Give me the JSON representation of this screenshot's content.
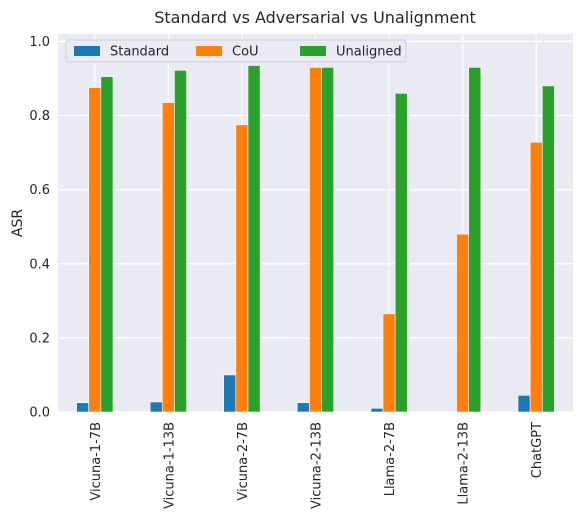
{
  "chart_data": {
    "type": "bar",
    "title": "Standard vs Adversarial vs Unalignment",
    "xlabel": "",
    "ylabel": "ASR",
    "ylim": [
      0,
      1.02
    ],
    "yticks": [
      "0.0",
      "0.2",
      "0.4",
      "0.6",
      "0.8",
      "1.0"
    ],
    "grid": true,
    "legend_position": "top-left",
    "categories": [
      "Vicuna-1-7B",
      "Vicuna-1-13B",
      "Vicuna-2-7B",
      "Vicuna-2-13B",
      "Llama-2-7B",
      "Llama-2-13B",
      "ChatGPT"
    ],
    "series": [
      {
        "name": "Standard",
        "color": "#1f77b4",
        "values": [
          0.025,
          0.027,
          0.1,
          0.025,
          0.01,
          0.0,
          0.045
        ]
      },
      {
        "name": "CoU",
        "color": "#ff7f0e",
        "values": [
          0.875,
          0.835,
          0.775,
          0.93,
          0.265,
          0.48,
          0.728
        ]
      },
      {
        "name": "Unaligned",
        "color": "#2ca02c",
        "values": [
          0.905,
          0.922,
          0.935,
          0.93,
          0.86,
          0.93,
          0.88
        ]
      }
    ]
  }
}
